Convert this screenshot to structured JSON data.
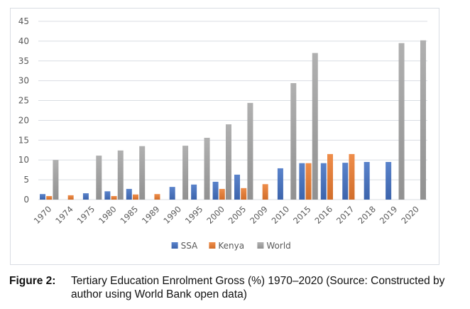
{
  "chart_data": {
    "type": "bar",
    "title": "",
    "xlabel": "",
    "ylabel": "",
    "ylim": [
      0,
      45
    ],
    "yticks": [
      0,
      5,
      10,
      15,
      20,
      25,
      30,
      35,
      40,
      45
    ],
    "grid": true,
    "legend_position": "bottom",
    "categories": [
      "1970",
      "1974",
      "1975",
      "1980",
      "1985",
      "1989",
      "1990",
      "1995",
      "2000",
      "2005",
      "2009",
      "2010",
      "2015",
      "2016",
      "2017",
      "2018",
      "2019",
      "2020"
    ],
    "series": [
      {
        "name": "SSA",
        "color": "#4472C4",
        "values": [
          1.4,
          null,
          1.6,
          2.1,
          2.7,
          null,
          3.2,
          3.8,
          4.5,
          6.3,
          null,
          7.9,
          9.2,
          9.2,
          9.3,
          9.5,
          9.5,
          null
        ]
      },
      {
        "name": "Kenya",
        "color": "#ED7D31",
        "values": [
          0.9,
          1.1,
          null,
          0.9,
          1.3,
          1.4,
          null,
          null,
          2.7,
          2.9,
          3.9,
          null,
          9.2,
          11.5,
          11.5,
          null,
          null,
          null
        ]
      },
      {
        "name": "World",
        "color": "#A5A5A5",
        "values": [
          10.0,
          null,
          11.1,
          12.4,
          13.5,
          null,
          13.6,
          15.6,
          19.0,
          24.4,
          null,
          29.4,
          37.0,
          null,
          null,
          null,
          39.5,
          40.2
        ]
      }
    ]
  },
  "caption": {
    "label": "Figure 2:",
    "text": "Tertiary Education Enrolment Gross (%) 1970–2020 (Source: Constructed by author using World Bank open data)"
  }
}
